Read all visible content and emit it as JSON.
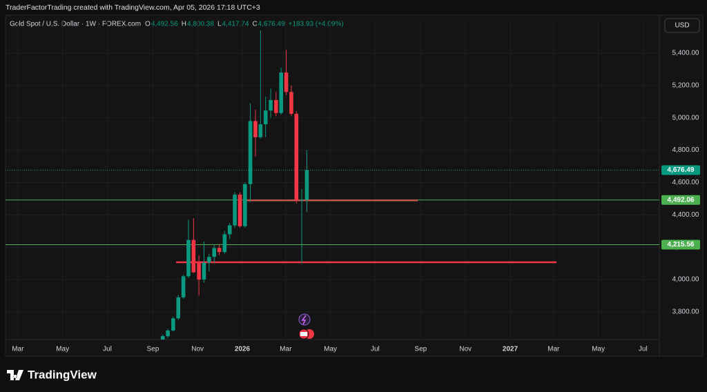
{
  "attribution": "TraderFactorTrading created with TradingView.com, Apr 05, 2026 17:18 UTC+3",
  "currency_button": "USD",
  "brand": "TradingView",
  "chart_data": {
    "type": "candlestick",
    "title": "Gold Spot / U.S. Dollar · 1W · FOREX.com",
    "ohlc_legend": [
      {
        "key": "O",
        "value": "4,492.56"
      },
      {
        "key": "H",
        "value": "4,800.38"
      },
      {
        "key": "L",
        "value": "4,417.74"
      },
      {
        "key": "C",
        "value": "4,676.49"
      }
    ],
    "change": "+183.93 (+4.09%)",
    "up_color": "#089981",
    "down_color": "#f23645",
    "x": [
      2025.703,
      2025.722,
      2025.742,
      2025.761,
      2025.78,
      2025.799,
      2025.818,
      2025.838,
      2025.857,
      2025.876,
      2025.895,
      2025.914,
      2025.934,
      2025.953,
      2025.972,
      2025.991,
      2026.01,
      2026.03,
      2026.049,
      2026.068,
      2026.087,
      2026.106,
      2026.126,
      2026.145,
      2026.164,
      2026.183,
      2026.202,
      2026.222,
      2026.241
    ],
    "open": [
      3620,
      3650,
      3685,
      3760,
      3890,
      4020,
      4245,
      4110,
      4000,
      4105,
      4140,
      4195,
      4170,
      4280,
      4335,
      4525,
      4330,
      4590,
      4980,
      4880,
      4960,
      5045,
      5110,
      5030,
      5280,
      5160,
      5025,
      4490,
      4492.56
    ],
    "high": [
      3660,
      3695,
      3770,
      3905,
      4030,
      4370,
      4380,
      4150,
      4235,
      4160,
      4215,
      4215,
      4300,
      4350,
      4540,
      4540,
      4600,
      5090,
      5050,
      5540,
      5130,
      5180,
      5160,
      5310,
      5420,
      5200,
      5040,
      4560,
      4800.38
    ],
    "low": [
      3610,
      3640,
      3680,
      3750,
      3880,
      4010,
      4040,
      3900,
      3980,
      4050,
      4100,
      4150,
      4160,
      4250,
      4320,
      4320,
      4320,
      4480,
      4760,
      4870,
      4880,
      5000,
      5010,
      5020,
      5140,
      5010,
      4470,
      4100,
      4417.74
    ],
    "close": [
      3650,
      3685,
      3760,
      3890,
      4020,
      4245,
      4045,
      4000,
      4105,
      4140,
      4195,
      4170,
      4280,
      4335,
      4525,
      4330,
      4590,
      4980,
      4880,
      4960,
      5045,
      5110,
      5030,
      5280,
      5160,
      5025,
      4490,
      4493,
      4676.49
    ],
    "xlim": [
      2025.116,
      2027.557
    ],
    "ylim": [
      3629,
      5609
    ],
    "xticks": [
      {
        "value": 2025.162,
        "label": "Mar"
      },
      {
        "value": 2025.329,
        "label": "May"
      },
      {
        "value": 2025.496,
        "label": "Jul"
      },
      {
        "value": 2025.666,
        "label": "Sep"
      },
      {
        "value": 2025.833,
        "label": "Nov"
      },
      {
        "value": 2026.0,
        "label": "2026"
      },
      {
        "value": 2026.162,
        "label": "Mar"
      },
      {
        "value": 2026.329,
        "label": "May"
      },
      {
        "value": 2026.496,
        "label": "Jul"
      },
      {
        "value": 2026.666,
        "label": "Sep"
      },
      {
        "value": 2026.833,
        "label": "Nov"
      },
      {
        "value": 2027.0,
        "label": "2027"
      },
      {
        "value": 2027.162,
        "label": "Mar"
      },
      {
        "value": 2027.329,
        "label": "May"
      },
      {
        "value": 2027.496,
        "label": "Jul"
      }
    ],
    "yticks": [
      {
        "value": 3800,
        "label": "3,800.00"
      },
      {
        "value": 4000,
        "label": "4,000.00"
      },
      {
        "value": 4200,
        "label": "4,200.00"
      },
      {
        "value": 4400,
        "label": "4,400.00"
      },
      {
        "value": 4600,
        "label": "4,600.00"
      },
      {
        "value": 4800,
        "label": "4,800.00"
      },
      {
        "value": 5000,
        "label": "5,000.00"
      },
      {
        "value": 5200,
        "label": "5,200.00"
      },
      {
        "value": 5400,
        "label": "5,400.00"
      }
    ],
    "grid": true,
    "last_price": {
      "value": 4676.49,
      "label": "4,676.49",
      "color": "#089981"
    },
    "hlines": [
      {
        "value": 4492.06,
        "label": "4,492.06",
        "color": "#4caf50"
      },
      {
        "value": 4215.56,
        "label": "4,215.56",
        "color": "#4caf50"
      }
    ],
    "segments": [
      {
        "value": 4490,
        "x": [
          2026.015,
          2026.655
        ],
        "color": "#c0574a"
      },
      {
        "value": 4107,
        "x": [
          2025.753,
          2027.173
        ],
        "color": "#f23645"
      }
    ]
  }
}
